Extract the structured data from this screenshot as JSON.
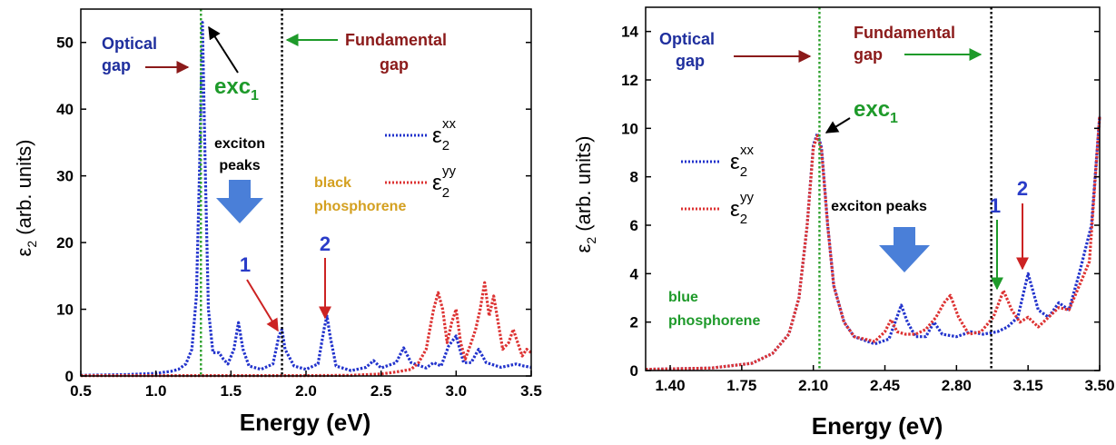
{
  "chart_data": [
    {
      "type": "line",
      "xlabel": "Energy (eV)",
      "ylabel_main": "ε",
      "ylabel_sub": "2",
      "ylabel_rest": " (arb. units)",
      "xlim": [
        0.5,
        3.5
      ],
      "ylim": [
        0,
        55
      ],
      "xticks": [
        0.5,
        1.0,
        1.5,
        2.0,
        2.5,
        3.0,
        3.5
      ],
      "xtick_labels": [
        "0.5",
        "1.0",
        "1.5",
        "2.0",
        "2.5",
        "3.0",
        "3.5"
      ],
      "yticks": [
        0,
        10,
        20,
        30,
        40,
        50
      ],
      "ytick_labels": [
        "0",
        "10",
        "20",
        "30",
        "40",
        "50"
      ],
      "grid": false,
      "vlines": [
        {
          "x": 1.3,
          "color": "#2ca02c"
        },
        {
          "x": 1.84,
          "color": "#000000"
        }
      ],
      "series": [
        {
          "name_main": "ε",
          "name_sub": "2",
          "name_sup": "xx",
          "color": "#2233cc",
          "points": [
            [
              0.5,
              0.1
            ],
            [
              0.8,
              0.2
            ],
            [
              1.0,
              0.4
            ],
            [
              1.1,
              0.7
            ],
            [
              1.15,
              1.0
            ],
            [
              1.2,
              1.8
            ],
            [
              1.24,
              4
            ],
            [
              1.27,
              12
            ],
            [
              1.29,
              30
            ],
            [
              1.31,
              53
            ],
            [
              1.33,
              30
            ],
            [
              1.35,
              10
            ],
            [
              1.38,
              3.5
            ],
            [
              1.42,
              3.5
            ],
            [
              1.45,
              2.5
            ],
            [
              1.48,
              1.8
            ],
            [
              1.52,
              4
            ],
            [
              1.55,
              8
            ],
            [
              1.58,
              4
            ],
            [
              1.62,
              1.5
            ],
            [
              1.7,
              1.0
            ],
            [
              1.78,
              1.8
            ],
            [
              1.82,
              6
            ],
            [
              1.84,
              7
            ],
            [
              1.86,
              4
            ],
            [
              1.92,
              1.5
            ],
            [
              2.0,
              1.0
            ],
            [
              2.08,
              1.8
            ],
            [
              2.12,
              7
            ],
            [
              2.14,
              9
            ],
            [
              2.16,
              6
            ],
            [
              2.2,
              1.5
            ],
            [
              2.3,
              0.8
            ],
            [
              2.4,
              1.3
            ],
            [
              2.45,
              2.3
            ],
            [
              2.5,
              1.2
            ],
            [
              2.6,
              2
            ],
            [
              2.65,
              4.2
            ],
            [
              2.7,
              2
            ],
            [
              2.8,
              1.2
            ],
            [
              2.85,
              2
            ],
            [
              2.9,
              1.5
            ],
            [
              2.95,
              4.5
            ],
            [
              3.0,
              6
            ],
            [
              3.05,
              2
            ],
            [
              3.1,
              2
            ],
            [
              3.15,
              4
            ],
            [
              3.2,
              2
            ],
            [
              3.3,
              1.3
            ],
            [
              3.4,
              1.8
            ],
            [
              3.45,
              1.5
            ],
            [
              3.5,
              1.3
            ]
          ]
        },
        {
          "name_main": "ε",
          "name_sub": "2",
          "name_sup": "yy",
          "color": "#dd3333",
          "points": [
            [
              0.5,
              0.05
            ],
            [
              1.0,
              0.05
            ],
            [
              1.5,
              0.05
            ],
            [
              2.0,
              0.05
            ],
            [
              2.3,
              0.1
            ],
            [
              2.5,
              0.3
            ],
            [
              2.6,
              0.6
            ],
            [
              2.7,
              1.0
            ],
            [
              2.75,
              2
            ],
            [
              2.8,
              4
            ],
            [
              2.85,
              10
            ],
            [
              2.88,
              12.5
            ],
            [
              2.91,
              10
            ],
            [
              2.94,
              5
            ],
            [
              2.97,
              8
            ],
            [
              3.0,
              10
            ],
            [
              3.03,
              5
            ],
            [
              3.06,
              2.5
            ],
            [
              3.1,
              5
            ],
            [
              3.13,
              7
            ],
            [
              3.16,
              10
            ],
            [
              3.19,
              14
            ],
            [
              3.22,
              9
            ],
            [
              3.25,
              12
            ],
            [
              3.28,
              8
            ],
            [
              3.31,
              4
            ],
            [
              3.35,
              5
            ],
            [
              3.38,
              7
            ],
            [
              3.41,
              5
            ],
            [
              3.44,
              3
            ],
            [
              3.47,
              4
            ],
            [
              3.5,
              3.5
            ]
          ]
        }
      ]
    },
    {
      "type": "line",
      "xlabel": "Energy (eV)",
      "ylabel_main": "ε",
      "ylabel_sub": "2",
      "ylabel_rest": " (arb. units)",
      "xlim": [
        1.28,
        3.5
      ],
      "ylim": [
        0,
        15
      ],
      "xticks": [
        1.4,
        1.75,
        2.1,
        2.45,
        2.8,
        3.15,
        3.5
      ],
      "xtick_labels": [
        "1.40",
        "1.75",
        "2.10",
        "2.45",
        "2.80",
        "3.15",
        "3.50"
      ],
      "yticks": [
        0,
        2,
        4,
        6,
        8,
        10,
        12,
        14
      ],
      "ytick_labels": [
        "0",
        "2",
        "4",
        "6",
        "8",
        "10",
        "12",
        "14"
      ],
      "grid": false,
      "vlines": [
        {
          "x": 2.13,
          "color": "#2ca02c"
        },
        {
          "x": 2.97,
          "color": "#000000"
        }
      ],
      "series": [
        {
          "name_main": "ε",
          "name_sub": "2",
          "name_sup": "xx",
          "color": "#2233cc",
          "points": [
            [
              1.28,
              0.05
            ],
            [
              1.6,
              0.1
            ],
            [
              1.8,
              0.3
            ],
            [
              1.9,
              0.7
            ],
            [
              1.98,
              1.5
            ],
            [
              2.03,
              3
            ],
            [
              2.07,
              6
            ],
            [
              2.1,
              9.3
            ],
            [
              2.12,
              9.8
            ],
            [
              2.14,
              9.2
            ],
            [
              2.17,
              6
            ],
            [
              2.2,
              3.5
            ],
            [
              2.25,
              2
            ],
            [
              2.3,
              1.4
            ],
            [
              2.4,
              1.1
            ],
            [
              2.47,
              1.3
            ],
            [
              2.5,
              2
            ],
            [
              2.53,
              2.7
            ],
            [
              2.56,
              2
            ],
            [
              2.6,
              1.4
            ],
            [
              2.65,
              1.4
            ],
            [
              2.69,
              2
            ],
            [
              2.73,
              1.5
            ],
            [
              2.8,
              1.4
            ],
            [
              2.87,
              1.6
            ],
            [
              2.93,
              1.5
            ],
            [
              3.0,
              1.6
            ],
            [
              3.05,
              1.8
            ],
            [
              3.1,
              2.2
            ],
            [
              3.15,
              4
            ],
            [
              3.2,
              2.5
            ],
            [
              3.25,
              2.2
            ],
            [
              3.3,
              2.8
            ],
            [
              3.35,
              2.5
            ],
            [
              3.4,
              4
            ],
            [
              3.43,
              5
            ],
            [
              3.46,
              6
            ],
            [
              3.5,
              10.5
            ]
          ]
        },
        {
          "name_main": "ε",
          "name_sub": "2",
          "name_sup": "yy",
          "color": "#dd3333",
          "points": [
            [
              1.28,
              0.05
            ],
            [
              1.6,
              0.1
            ],
            [
              1.8,
              0.3
            ],
            [
              1.9,
              0.7
            ],
            [
              1.98,
              1.5
            ],
            [
              2.03,
              3
            ],
            [
              2.07,
              6
            ],
            [
              2.1,
              9.2
            ],
            [
              2.12,
              9.7
            ],
            [
              2.14,
              9.1
            ],
            [
              2.17,
              6
            ],
            [
              2.2,
              3.5
            ],
            [
              2.25,
              2
            ],
            [
              2.3,
              1.4
            ],
            [
              2.4,
              1.2
            ],
            [
              2.45,
              1.6
            ],
            [
              2.48,
              2.1
            ],
            [
              2.51,
              1.6
            ],
            [
              2.55,
              1.5
            ],
            [
              2.6,
              1.5
            ],
            [
              2.65,
              1.7
            ],
            [
              2.7,
              2.2
            ],
            [
              2.74,
              2.8
            ],
            [
              2.77,
              3.1
            ],
            [
              2.81,
              2.2
            ],
            [
              2.86,
              1.5
            ],
            [
              2.92,
              1.6
            ],
            [
              2.98,
              2.2
            ],
            [
              3.03,
              3.3
            ],
            [
              3.07,
              2.5
            ],
            [
              3.11,
              2
            ],
            [
              3.15,
              2.2
            ],
            [
              3.2,
              1.8
            ],
            [
              3.25,
              2.2
            ],
            [
              3.3,
              2.6
            ],
            [
              3.35,
              2.5
            ],
            [
              3.4,
              3.5
            ],
            [
              3.45,
              4.5
            ],
            [
              3.5,
              10.5
            ]
          ]
        }
      ]
    }
  ],
  "annotations_left": {
    "optical": [
      "Optical",
      "gap"
    ],
    "fundamental": [
      "Fundamental",
      "gap"
    ],
    "exc_main": "exc",
    "exc_sub": "1",
    "exciton": [
      "exciton",
      "peaks"
    ],
    "material": [
      "black",
      "phosphorene"
    ],
    "peak1": "1",
    "peak2": "2"
  },
  "annotations_right": {
    "optical": [
      "Optical",
      "gap"
    ],
    "fundamental": [
      "Fundamental",
      "gap"
    ],
    "exc_main": "exc",
    "exc_sub": "1",
    "exciton": "exciton peaks",
    "material": [
      "blue",
      "phosphorene"
    ],
    "peak1": "1",
    "peak2": "2"
  },
  "colors": {
    "navy": "#1f2f9e",
    "darkred": "#8b1a1a",
    "green": "#1e9a2a",
    "gold": "#d4a020",
    "arrow_blue": "#4a7fd8",
    "peak_label_blue": "#2a3cc8"
  }
}
